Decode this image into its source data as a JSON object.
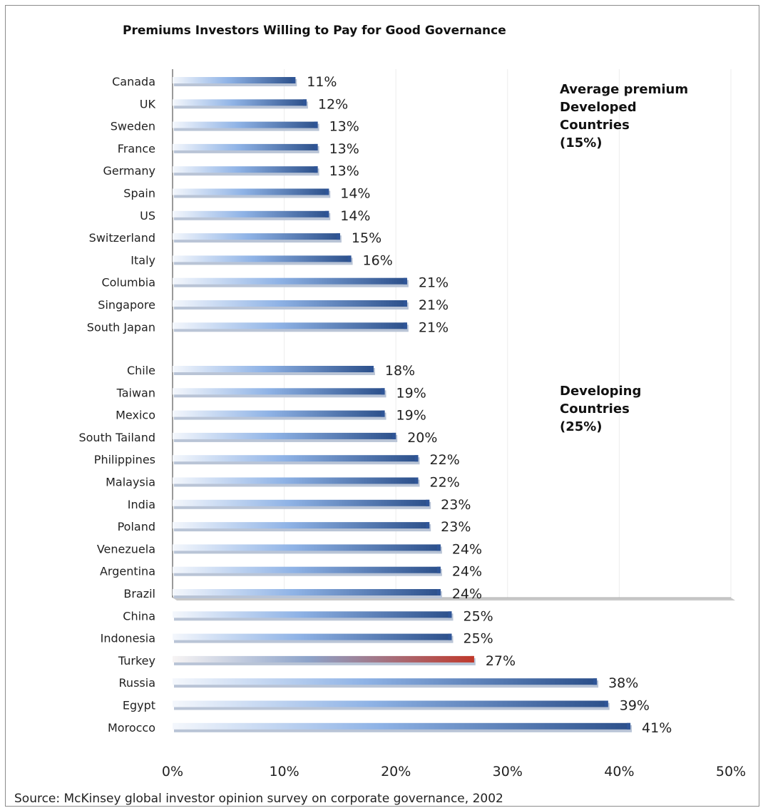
{
  "chart_data": {
    "type": "bar",
    "orientation": "horizontal",
    "title": "Premiums Investors Willing to Pay for Good Governance",
    "groups": [
      {
        "categories": [
          "Canada",
          "UK",
          "Sweden",
          "France",
          "Germany",
          "Spain",
          "US",
          "Switzerland",
          "Italy",
          "Columbia",
          "Singapore",
          "South Japan"
        ],
        "values": [
          11,
          12,
          13,
          13,
          13,
          14,
          14,
          15,
          16,
          21,
          21,
          21
        ]
      },
      {
        "categories": [
          "Chile",
          "Taiwan",
          "Mexico",
          "South Tailand",
          "Philippines",
          "Malaysia",
          "India",
          "Poland",
          "Venezuela",
          "Argentina",
          "Brazil",
          "China",
          "Indonesia",
          "Turkey",
          "Russia",
          "Egypt",
          "Morocco"
        ],
        "values": [
          18,
          19,
          19,
          20,
          22,
          22,
          23,
          23,
          24,
          24,
          24,
          25,
          25,
          27,
          38,
          39,
          41
        ]
      }
    ],
    "value_suffix": "%",
    "highlight": {
      "category": "Turkey",
      "color": "#c0392b"
    },
    "bar_color": "#2f5597",
    "xlim": [
      0,
      50
    ],
    "xticks": [
      0,
      10,
      20,
      30,
      40,
      50
    ],
    "xtick_labels": [
      "0%",
      "10%",
      "20%",
      "30%",
      "40%",
      "50%"
    ],
    "grid": true,
    "annotations": [
      "Average premium\nDeveloped\nCountries\n(15%)",
      "Developing\nCountries\n(25%)"
    ],
    "source": "Source: McKinsey global investor opinion survey on corporate governance, 2002"
  }
}
